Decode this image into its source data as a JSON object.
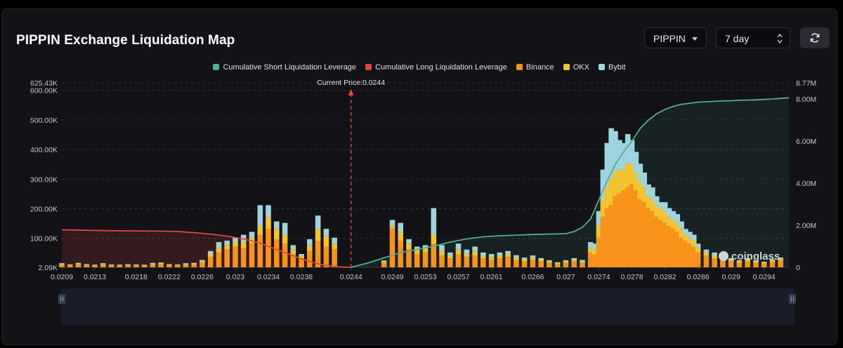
{
  "header": {
    "title": "PIPPIN Exchange Liquidation Map"
  },
  "controls": {
    "symbol": "PIPPIN",
    "range": "7 day"
  },
  "icons": {
    "refresh": "refresh-icon",
    "caret": "chevron-down-icon",
    "updown": "updown-icon"
  },
  "watermark": "coinglass",
  "colors": {
    "binance": "#f7931a",
    "okx": "#f4c430",
    "bybit": "#9fd3de",
    "short_line": "#4fae93",
    "long_line": "#e0473f",
    "current_price": "#e0473f"
  },
  "chart_data": {
    "type": "bar",
    "legend_position": "top-center",
    "current_price_label": "Current Price:0.0244",
    "current_price": 0.0244,
    "x_ticks": [
      "0.0209",
      "0.0213",
      "0.0218",
      "0.0222",
      "0.0226",
      "0.023",
      "0.0234",
      "0.0238",
      "0.0244",
      "0.0249",
      "0.0253",
      "0.0257",
      "0.0261",
      "0.0266",
      "0.027",
      "0.0274",
      "0.0278",
      "0.0282",
      "0.0286",
      "0.029",
      "0.0294"
    ],
    "y_left_ticks": [
      "625.43K",
      "600.00K",
      "500.00K",
      "400.00K",
      "300.00K",
      "200.00K",
      "100.00K",
      "2.09K"
    ],
    "y_left_range": [
      2090,
      625430
    ],
    "y_right_ticks": [
      "8.77M",
      "8.00M",
      "6.00M",
      "4.00M",
      "2.00M",
      "0"
    ],
    "y_right_range": [
      0,
      8770000
    ],
    "grid": true,
    "x_range": [
      0.0209,
      0.0297
    ],
    "bar_x": [
      0.0209,
      0.021,
      0.0211,
      0.0212,
      0.0213,
      0.0214,
      0.0215,
      0.0216,
      0.0217,
      0.0218,
      0.0219,
      0.022,
      0.0221,
      0.0222,
      0.0223,
      0.0224,
      0.0225,
      0.0226,
      0.0227,
      0.0228,
      0.0229,
      0.023,
      0.0231,
      0.0232,
      0.0233,
      0.0234,
      0.0235,
      0.0236,
      0.0237,
      0.0238,
      0.0239,
      0.024,
      0.0241,
      0.0242,
      0.0245,
      0.0246,
      0.0247,
      0.0248,
      0.0249,
      0.025,
      0.0251,
      0.0252,
      0.0253,
      0.0254,
      0.0255,
      0.0256,
      0.0257,
      0.0258,
      0.0259,
      0.026,
      0.0261,
      0.0262,
      0.0263,
      0.0264,
      0.0265,
      0.0266,
      0.0267,
      0.0268,
      0.0269,
      0.027,
      0.0271,
      0.0272,
      0.0273,
      0.02735,
      0.0274,
      0.02745,
      0.0275,
      0.02755,
      0.0276,
      0.02765,
      0.0277,
      0.02775,
      0.0278,
      0.02785,
      0.0279,
      0.02795,
      0.028,
      0.02805,
      0.0281,
      0.02815,
      0.0282,
      0.02825,
      0.0283,
      0.02835,
      0.0284,
      0.02845,
      0.0285,
      0.02855,
      0.0286,
      0.0287,
      0.0288,
      0.0289,
      0.029,
      0.0291,
      0.0292,
      0.0293,
      0.0294,
      0.0295,
      0.0296
    ],
    "series": [
      {
        "name": "Binance",
        "values": [
          8000,
          6000,
          9000,
          7000,
          5000,
          8000,
          6000,
          5000,
          7000,
          6000,
          5000,
          9000,
          10000,
          7000,
          6000,
          8000,
          9000,
          15000,
          35000,
          50000,
          60000,
          70000,
          65000,
          80000,
          110000,
          130000,
          95000,
          80000,
          45000,
          30000,
          55000,
          90000,
          70000,
          60000,
          0,
          0,
          0,
          15000,
          130000,
          90000,
          60000,
          45000,
          50000,
          80000,
          40000,
          30000,
          45000,
          35000,
          40000,
          30000,
          25000,
          30000,
          35000,
          25000,
          20000,
          25000,
          20000,
          15000,
          10000,
          15000,
          20000,
          15000,
          50000,
          45000,
          100000,
          170000,
          200000,
          210000,
          240000,
          250000,
          260000,
          270000,
          280000,
          260000,
          230000,
          220000,
          200000,
          190000,
          170000,
          160000,
          150000,
          140000,
          130000,
          120000,
          100000,
          90000,
          80000,
          70000,
          50000,
          40000,
          30000,
          25000,
          20000,
          15000,
          20000,
          15000,
          12000,
          18000,
          22000
        ]
      },
      {
        "name": "OKX",
        "values": [
          3000,
          2000,
          3000,
          2000,
          2000,
          3000,
          2000,
          2000,
          2000,
          2000,
          2000,
          3000,
          3000,
          2000,
          2000,
          3000,
          3000,
          5000,
          10000,
          15000,
          15000,
          15000,
          20000,
          20000,
          30000,
          40000,
          35000,
          30000,
          15000,
          10000,
          20000,
          40000,
          35000,
          20000,
          0,
          0,
          0,
          5000,
          10000,
          30000,
          20000,
          15000,
          15000,
          30000,
          15000,
          10000,
          15000,
          10000,
          15000,
          10000,
          10000,
          10000,
          10000,
          8000,
          7000,
          8000,
          6000,
          5000,
          4000,
          5000,
          6000,
          5000,
          15000,
          15000,
          40000,
          60000,
          70000,
          90000,
          80000,
          80000,
          70000,
          80000,
          70000,
          60000,
          60000,
          50000,
          40000,
          40000,
          40000,
          40000,
          40000,
          30000,
          30000,
          30000,
          30000,
          20000,
          20000,
          20000,
          15000,
          10000,
          10000,
          8000,
          6000,
          5000,
          6000,
          5000,
          4000,
          5000,
          6000
        ]
      },
      {
        "name": "Bybit",
        "values": [
          3000,
          2000,
          3000,
          2000,
          2000,
          3000,
          2000,
          2000,
          2000,
          2000,
          2000,
          3000,
          3000,
          2000,
          2000,
          3000,
          3000,
          5000,
          10000,
          20000,
          15000,
          15000,
          25000,
          20000,
          70000,
          40000,
          25000,
          40000,
          15000,
          5000,
          20000,
          45000,
          25000,
          20000,
          0,
          0,
          0,
          3000,
          20000,
          30000,
          15000,
          10000,
          10000,
          90000,
          20000,
          10000,
          20000,
          15000,
          15000,
          10000,
          10000,
          10000,
          10000,
          8000,
          6000,
          7000,
          5000,
          4000,
          3000,
          4000,
          5000,
          5000,
          20000,
          20000,
          50000,
          100000,
          150000,
          170000,
          140000,
          100000,
          90000,
          100000,
          80000,
          70000,
          60000,
          50000,
          40000,
          40000,
          30000,
          20000,
          30000,
          30000,
          30000,
          30000,
          25000,
          20000,
          20000,
          20000,
          15000,
          10000,
          10000,
          7000,
          5000,
          4000,
          5000,
          4000,
          3000,
          4000,
          5000
        ]
      },
      {
        "name": "Cumulative Short Liquidation Leverage",
        "x": [
          0.0244,
          0.0246,
          0.0248,
          0.025,
          0.0252,
          0.0254,
          0.0256,
          0.0258,
          0.026,
          0.0262,
          0.0264,
          0.0266,
          0.0268,
          0.027,
          0.0271,
          0.0272,
          0.0273,
          0.0274,
          0.0275,
          0.0276,
          0.0277,
          0.0278,
          0.0279,
          0.028,
          0.0281,
          0.0282,
          0.0283,
          0.0284,
          0.0285,
          0.0286,
          0.0287,
          0.0288,
          0.0289,
          0.029,
          0.0291,
          0.0292,
          0.0293,
          0.0294,
          0.0295,
          0.0296,
          0.0297
        ],
        "values": [
          0,
          200000,
          450000,
          700000,
          850000,
          1000000,
          1200000,
          1350000,
          1450000,
          1500000,
          1530000,
          1560000,
          1580000,
          1600000,
          1700000,
          1900000,
          2300000,
          3200000,
          4100000,
          4900000,
          5500000,
          6000000,
          6600000,
          7000000,
          7300000,
          7500000,
          7650000,
          7750000,
          7800000,
          7850000,
          7870000,
          7890000,
          7910000,
          7920000,
          7940000,
          7950000,
          7960000,
          7980000,
          8000000,
          8030000,
          8060000
        ]
      },
      {
        "name": "Cumulative Long Liquidation Leverage",
        "x": [
          0.0209,
          0.0212,
          0.0215,
          0.0218,
          0.0221,
          0.0223,
          0.0225,
          0.0227,
          0.0229,
          0.0231,
          0.0233,
          0.0234,
          0.0235,
          0.0236,
          0.0237,
          0.0238,
          0.0239,
          0.024,
          0.0241,
          0.0242,
          0.0243,
          0.0244
        ],
        "values": [
          1780000,
          1760000,
          1740000,
          1730000,
          1720000,
          1700000,
          1650000,
          1580000,
          1480000,
          1350000,
          1150000,
          1000000,
          850000,
          700000,
          550000,
          400000,
          280000,
          170000,
          90000,
          40000,
          10000,
          0
        ]
      }
    ]
  }
}
